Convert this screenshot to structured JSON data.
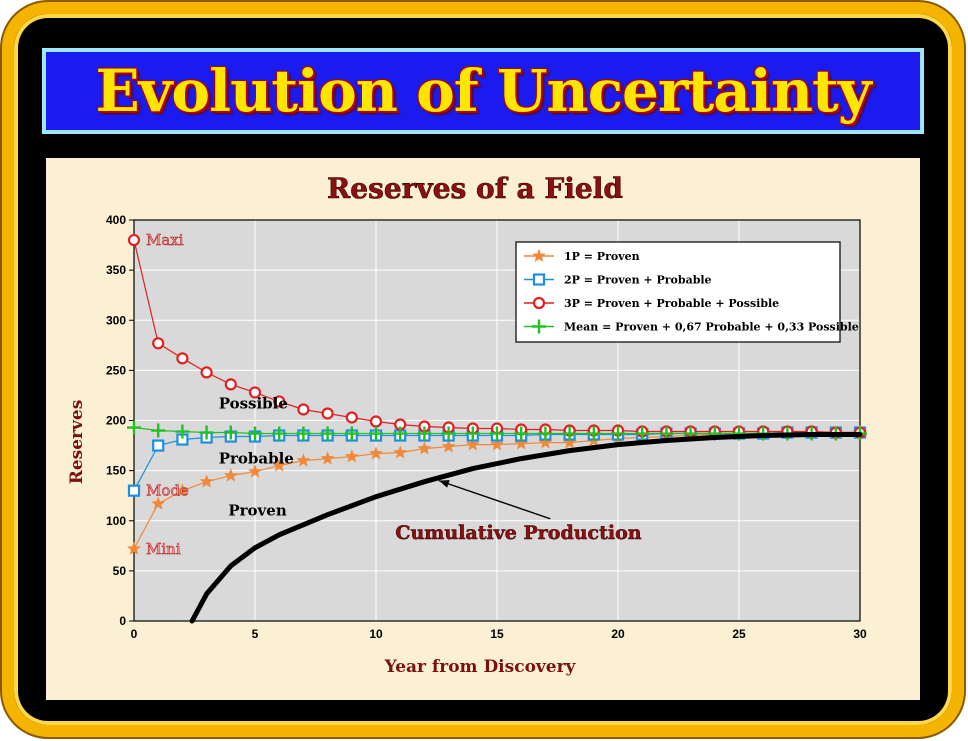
{
  "header": {
    "title": "Evolution of Uncertainty"
  },
  "colors": {
    "frame": "#f4b400",
    "title_bg": "#1b1bf0",
    "title_text": "#ffe600",
    "panel_bg": "#fbf0d3",
    "plot_bg": "#d9d9d9"
  },
  "chart_data": {
    "type": "line",
    "title": "Reserves of a Field",
    "xlabel": "Year from Discovery",
    "ylabel": "Reserves",
    "xlim": [
      0,
      30
    ],
    "ylim": [
      0,
      400
    ],
    "xticks": [
      0,
      5,
      10,
      15,
      20,
      25,
      30
    ],
    "yticks": [
      0,
      50,
      100,
      150,
      200,
      250,
      300,
      350,
      400
    ],
    "grid": true,
    "legend_position": "top-right",
    "series": [
      {
        "name": "1P = Proven",
        "color": "#f08a3a",
        "marker": "star",
        "x": [
          0,
          1,
          2,
          3,
          4,
          5,
          6,
          7,
          8,
          9,
          10,
          11,
          12,
          13,
          14,
          15,
          16,
          17,
          18,
          19,
          20,
          21,
          22,
          23,
          24,
          25,
          26,
          27,
          28,
          29,
          30
        ],
        "y": [
          72,
          117,
          130,
          139,
          145,
          149,
          155,
          160,
          162,
          164,
          167,
          168,
          172,
          174,
          176,
          176,
          177,
          178,
          178,
          180,
          182,
          183,
          184,
          185,
          186,
          187,
          187,
          188,
          188,
          188,
          188
        ]
      },
      {
        "name": "2P = Proven + Probable",
        "color": "#1e8fe0",
        "marker": "square",
        "x": [
          0,
          1,
          2,
          3,
          4,
          5,
          6,
          7,
          8,
          9,
          10,
          11,
          12,
          13,
          14,
          15,
          16,
          17,
          18,
          19,
          20,
          21,
          22,
          23,
          24,
          25,
          26,
          27,
          28,
          29,
          30
        ],
        "y": [
          130,
          175,
          181,
          183,
          184,
          184,
          185,
          185,
          185,
          185,
          185,
          185,
          185,
          185,
          185,
          185,
          185,
          186,
          186,
          186,
          186,
          186,
          187,
          187,
          187,
          187,
          187,
          188,
          188,
          188,
          188
        ]
      },
      {
        "name": "3P = Proven + Probable + Possible",
        "color": "#e02020",
        "marker": "circle",
        "x": [
          0,
          1,
          2,
          3,
          4,
          5,
          6,
          7,
          8,
          9,
          10,
          11,
          12,
          13,
          14,
          15,
          16,
          17,
          18,
          19,
          20,
          21,
          22,
          23,
          24,
          25,
          26,
          27,
          28,
          29,
          30
        ],
        "y": [
          380,
          277,
          262,
          248,
          236,
          228,
          219,
          211,
          207,
          203,
          199,
          196,
          194,
          193,
          192,
          192,
          191,
          191,
          190,
          190,
          190,
          189,
          189,
          189,
          189,
          189,
          189,
          189,
          189,
          188,
          188
        ]
      },
      {
        "name": "Mean = Proven + 0,67 Probable + 0,33 Possible",
        "color": "#22c022",
        "marker": "plus",
        "x": [
          0,
          1,
          2,
          3,
          4,
          5,
          6,
          7,
          8,
          9,
          10,
          11,
          12,
          13,
          14,
          15,
          16,
          17,
          18,
          19,
          20,
          21,
          22,
          23,
          24,
          25,
          26,
          27,
          28,
          29,
          30
        ],
        "y": [
          193,
          190,
          189,
          188,
          188,
          187,
          187,
          187,
          187,
          187,
          187,
          187,
          187,
          187,
          187,
          187,
          187,
          187,
          187,
          187,
          187,
          187,
          187,
          187,
          187,
          187,
          187,
          187,
          187,
          187,
          187
        ]
      }
    ],
    "cumulative_production": {
      "label": "Cumulative Production",
      "x": [
        2.4,
        3,
        4,
        5,
        6,
        8,
        10,
        12,
        14,
        16,
        18,
        20,
        22,
        24,
        26,
        28,
        30
      ],
      "y": [
        0,
        27,
        55,
        73,
        86,
        106,
        124,
        139,
        152,
        162,
        170,
        176,
        180,
        183,
        185,
        186,
        186
      ]
    },
    "annotations": [
      {
        "text": "Maxi",
        "x": 0,
        "y": 380
      },
      {
        "text": "Mode",
        "x": 0,
        "y": 130
      },
      {
        "text": "Mini",
        "x": 0,
        "y": 72
      },
      {
        "text": "Possible",
        "x": 3.5,
        "y": 217
      },
      {
        "text": "Probable",
        "x": 3.5,
        "y": 162
      },
      {
        "text": "Proven",
        "x": 3.9,
        "y": 110
      }
    ]
  }
}
